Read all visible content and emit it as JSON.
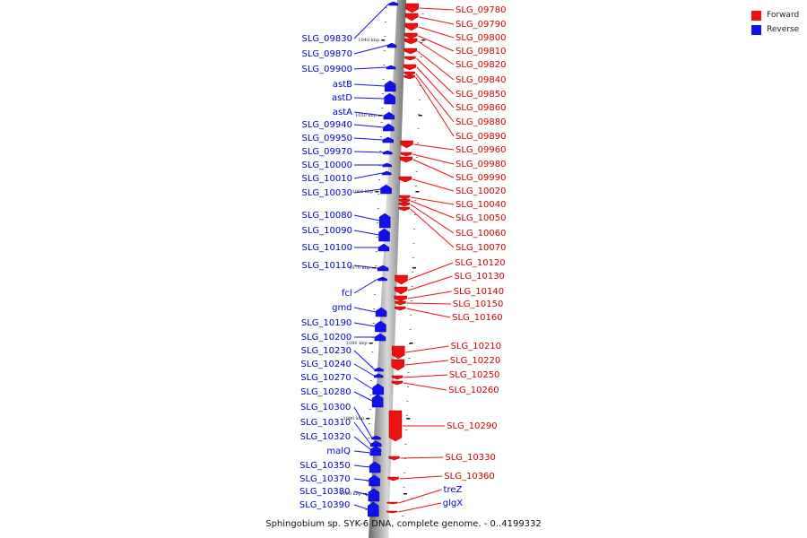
{
  "caption": "Sphingobium sp. SYK-6 DNA, complete genome. - 0..4199332",
  "legend": [
    {
      "label": "Forward",
      "color": "#ee1111"
    },
    {
      "label": "Reverse",
      "color": "#1111ee"
    }
  ],
  "colors": {
    "forward": "#ee1111",
    "reverse": "#1111ee",
    "backbone": "#8c8c8c"
  },
  "scale_labels": [
    "1040 kbp",
    "1050 kbp",
    "1060 kbp",
    "1070 kbp",
    "1080 kbp",
    "1090 kbp",
    "1100 kbp"
  ],
  "reverse_genes": [
    "SLG_09830",
    "SLG_09870",
    "SLG_09900",
    "astB",
    "astD",
    "astA",
    "SLG_09940",
    "SLG_09950",
    "SLG_09970",
    "SLG_10000",
    "SLG_10010",
    "SLG_10030",
    "SLG_10080",
    "SLG_10090",
    "SLG_10100",
    "SLG_10110",
    "fcl",
    "gmd",
    "SLG_10190",
    "SLG_10200",
    "SLG_10230",
    "SLG_10240",
    "SLG_10270",
    "SLG_10280",
    "SLG_10300",
    "SLG_10310",
    "SLG_10320",
    "malQ",
    "SLG_10350",
    "SLG_10370",
    "SLG_10380",
    "SLG_10390"
  ],
  "forward_genes": [
    "SLG_09780",
    "SLG_09790",
    "SLG_09800",
    "SLG_09810",
    "SLG_09820",
    "SLG_09840",
    "SLG_09850",
    "SLG_09860",
    "SLG_09880",
    "SLG_09890",
    "SLG_09960",
    "SLG_09980",
    "SLG_09990",
    "SLG_10020",
    "SLG_10040",
    "SLG_10050",
    "SLG_10060",
    "SLG_10070",
    "SLG_10120",
    "SLG_10130",
    "SLG_10140",
    "SLG_10150",
    "SLG_10160",
    "SLG_10210",
    "SLG_10220",
    "SLG_10250",
    "SLG_10260",
    "SLG_10290",
    "SLG_10330",
    "SLG_10360",
    "treZ",
    "glgX"
  ]
}
